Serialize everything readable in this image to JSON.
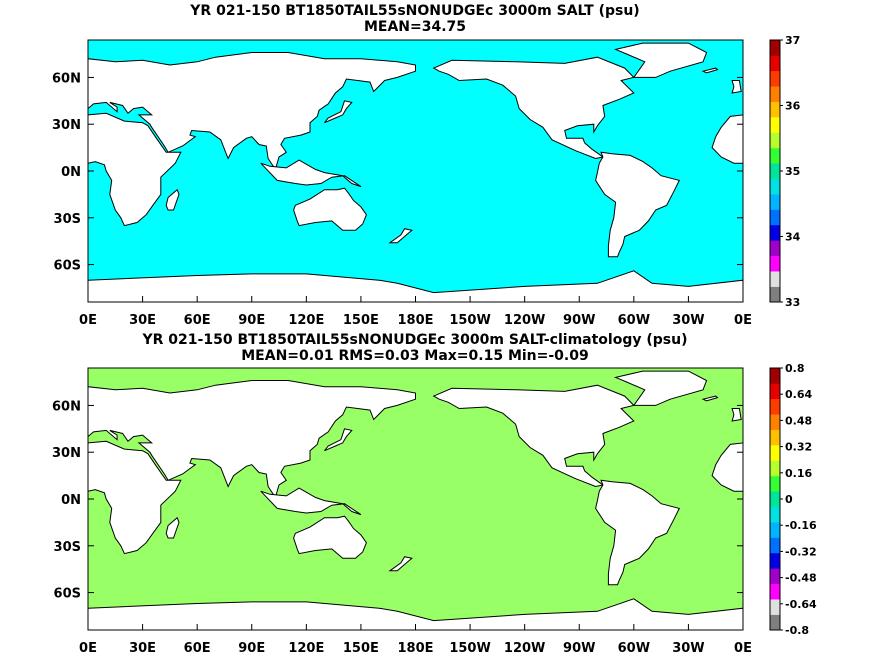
{
  "panels": [
    {
      "title": "YR 021-150 BT1850TAIL55sNONUDGEc 3000m SALT (psu)",
      "subtitle": "MEAN=34.75",
      "ocean_color": "#00ffff",
      "colorbar_labels": [
        "37",
        "36",
        "35",
        "34",
        "33"
      ]
    },
    {
      "title": "YR 021-150 BT1850TAIL55sNONUDGEc 3000m SALT-climatology (psu)",
      "subtitle": "MEAN=0.01   RMS=0.03   Max=0.15   Min=-0.09",
      "ocean_color": "#99ff66",
      "colorbar_labels": [
        "0.8",
        "0.64",
        "0.48",
        "0.32",
        "0.16",
        "0",
        "-0.16",
        "-0.32",
        "-0.48",
        "-0.64",
        "-0.8"
      ]
    }
  ],
  "axes": {
    "lon_labels": [
      "0E",
      "30E",
      "60E",
      "90E",
      "120E",
      "150E",
      "180E",
      "150W",
      "120W",
      "90W",
      "60W",
      "30W",
      "0E"
    ],
    "lat_labels": [
      "60N",
      "30N",
      "0N",
      "30S",
      "60S"
    ]
  },
  "colorbar_colors": [
    "#7f7f7f",
    "#e0e0e0",
    "#ff00ff",
    "#a000c8",
    "#0000e6",
    "#0070ff",
    "#00b4ff",
    "#00e1e1",
    "#00e59a",
    "#33ff33",
    "#b4ff2d",
    "#ffff00",
    "#ffc000",
    "#ff8000",
    "#ff3c00",
    "#e60000",
    "#a00000"
  ]
}
